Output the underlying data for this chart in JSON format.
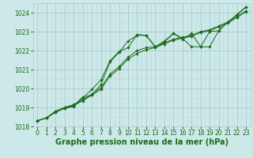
{
  "hours": [
    0,
    1,
    2,
    3,
    4,
    5,
    6,
    7,
    8,
    9,
    10,
    11,
    12,
    13,
    14,
    15,
    16,
    17,
    18,
    19,
    20,
    21,
    22,
    23
  ],
  "series": [
    [
      1018.3,
      1018.45,
      1018.8,
      1019.0,
      1019.1,
      1019.55,
      1019.65,
      1020.2,
      1021.4,
      1021.9,
      1022.5,
      1022.8,
      1022.8,
      1022.2,
      1022.45,
      1022.9,
      1022.65,
      1022.2,
      1022.2,
      1023.0,
      1023.05,
      1023.5,
      1023.85,
      1024.3
    ],
    [
      1018.3,
      1018.45,
      1018.75,
      1018.95,
      1019.1,
      1019.35,
      1019.65,
      1019.95,
      1020.65,
      1021.05,
      1021.55,
      1021.85,
      1022.05,
      1022.15,
      1022.35,
      1022.55,
      1022.65,
      1022.75,
      1022.95,
      1023.05,
      1023.25,
      1023.45,
      1023.75,
      1024.05
    ],
    [
      1018.3,
      1018.45,
      1018.75,
      1019.0,
      1019.15,
      1019.4,
      1019.7,
      1020.05,
      1020.75,
      1021.15,
      1021.65,
      1022.0,
      1022.15,
      1022.2,
      1022.4,
      1022.6,
      1022.7,
      1022.8,
      1023.0,
      1023.1,
      1023.3,
      1023.5,
      1023.75,
      1024.1
    ],
    [
      1018.3,
      1018.45,
      1018.8,
      1018.95,
      1019.05,
      1019.5,
      1019.95,
      1020.45,
      1021.45,
      1021.95,
      1022.15,
      1022.85,
      1022.8,
      1022.2,
      1022.5,
      1022.9,
      1022.6,
      1022.9,
      1022.2,
      1022.2,
      1023.05,
      1023.5,
      1023.9,
      1024.3
    ]
  ],
  "line_color": "#1a6b1a",
  "marker_color": "#1a6b1a",
  "bg_color": "#cde8e8",
  "grid_major_color": "#aacccc",
  "grid_minor_color": "#bbdddd",
  "xlabel": "Graphe pression niveau de la mer (hPa)",
  "xlabel_color": "#1a6b1a",
  "ylim": [
    1018.0,
    1024.5
  ],
  "yticks": [
    1018,
    1019,
    1020,
    1021,
    1022,
    1023,
    1024
  ],
  "xticks": [
    0,
    1,
    2,
    3,
    4,
    5,
    6,
    7,
    8,
    9,
    10,
    11,
    12,
    13,
    14,
    15,
    16,
    17,
    18,
    19,
    20,
    21,
    22,
    23
  ],
  "tick_fontsize": 5.5,
  "xlabel_fontsize": 7.0
}
